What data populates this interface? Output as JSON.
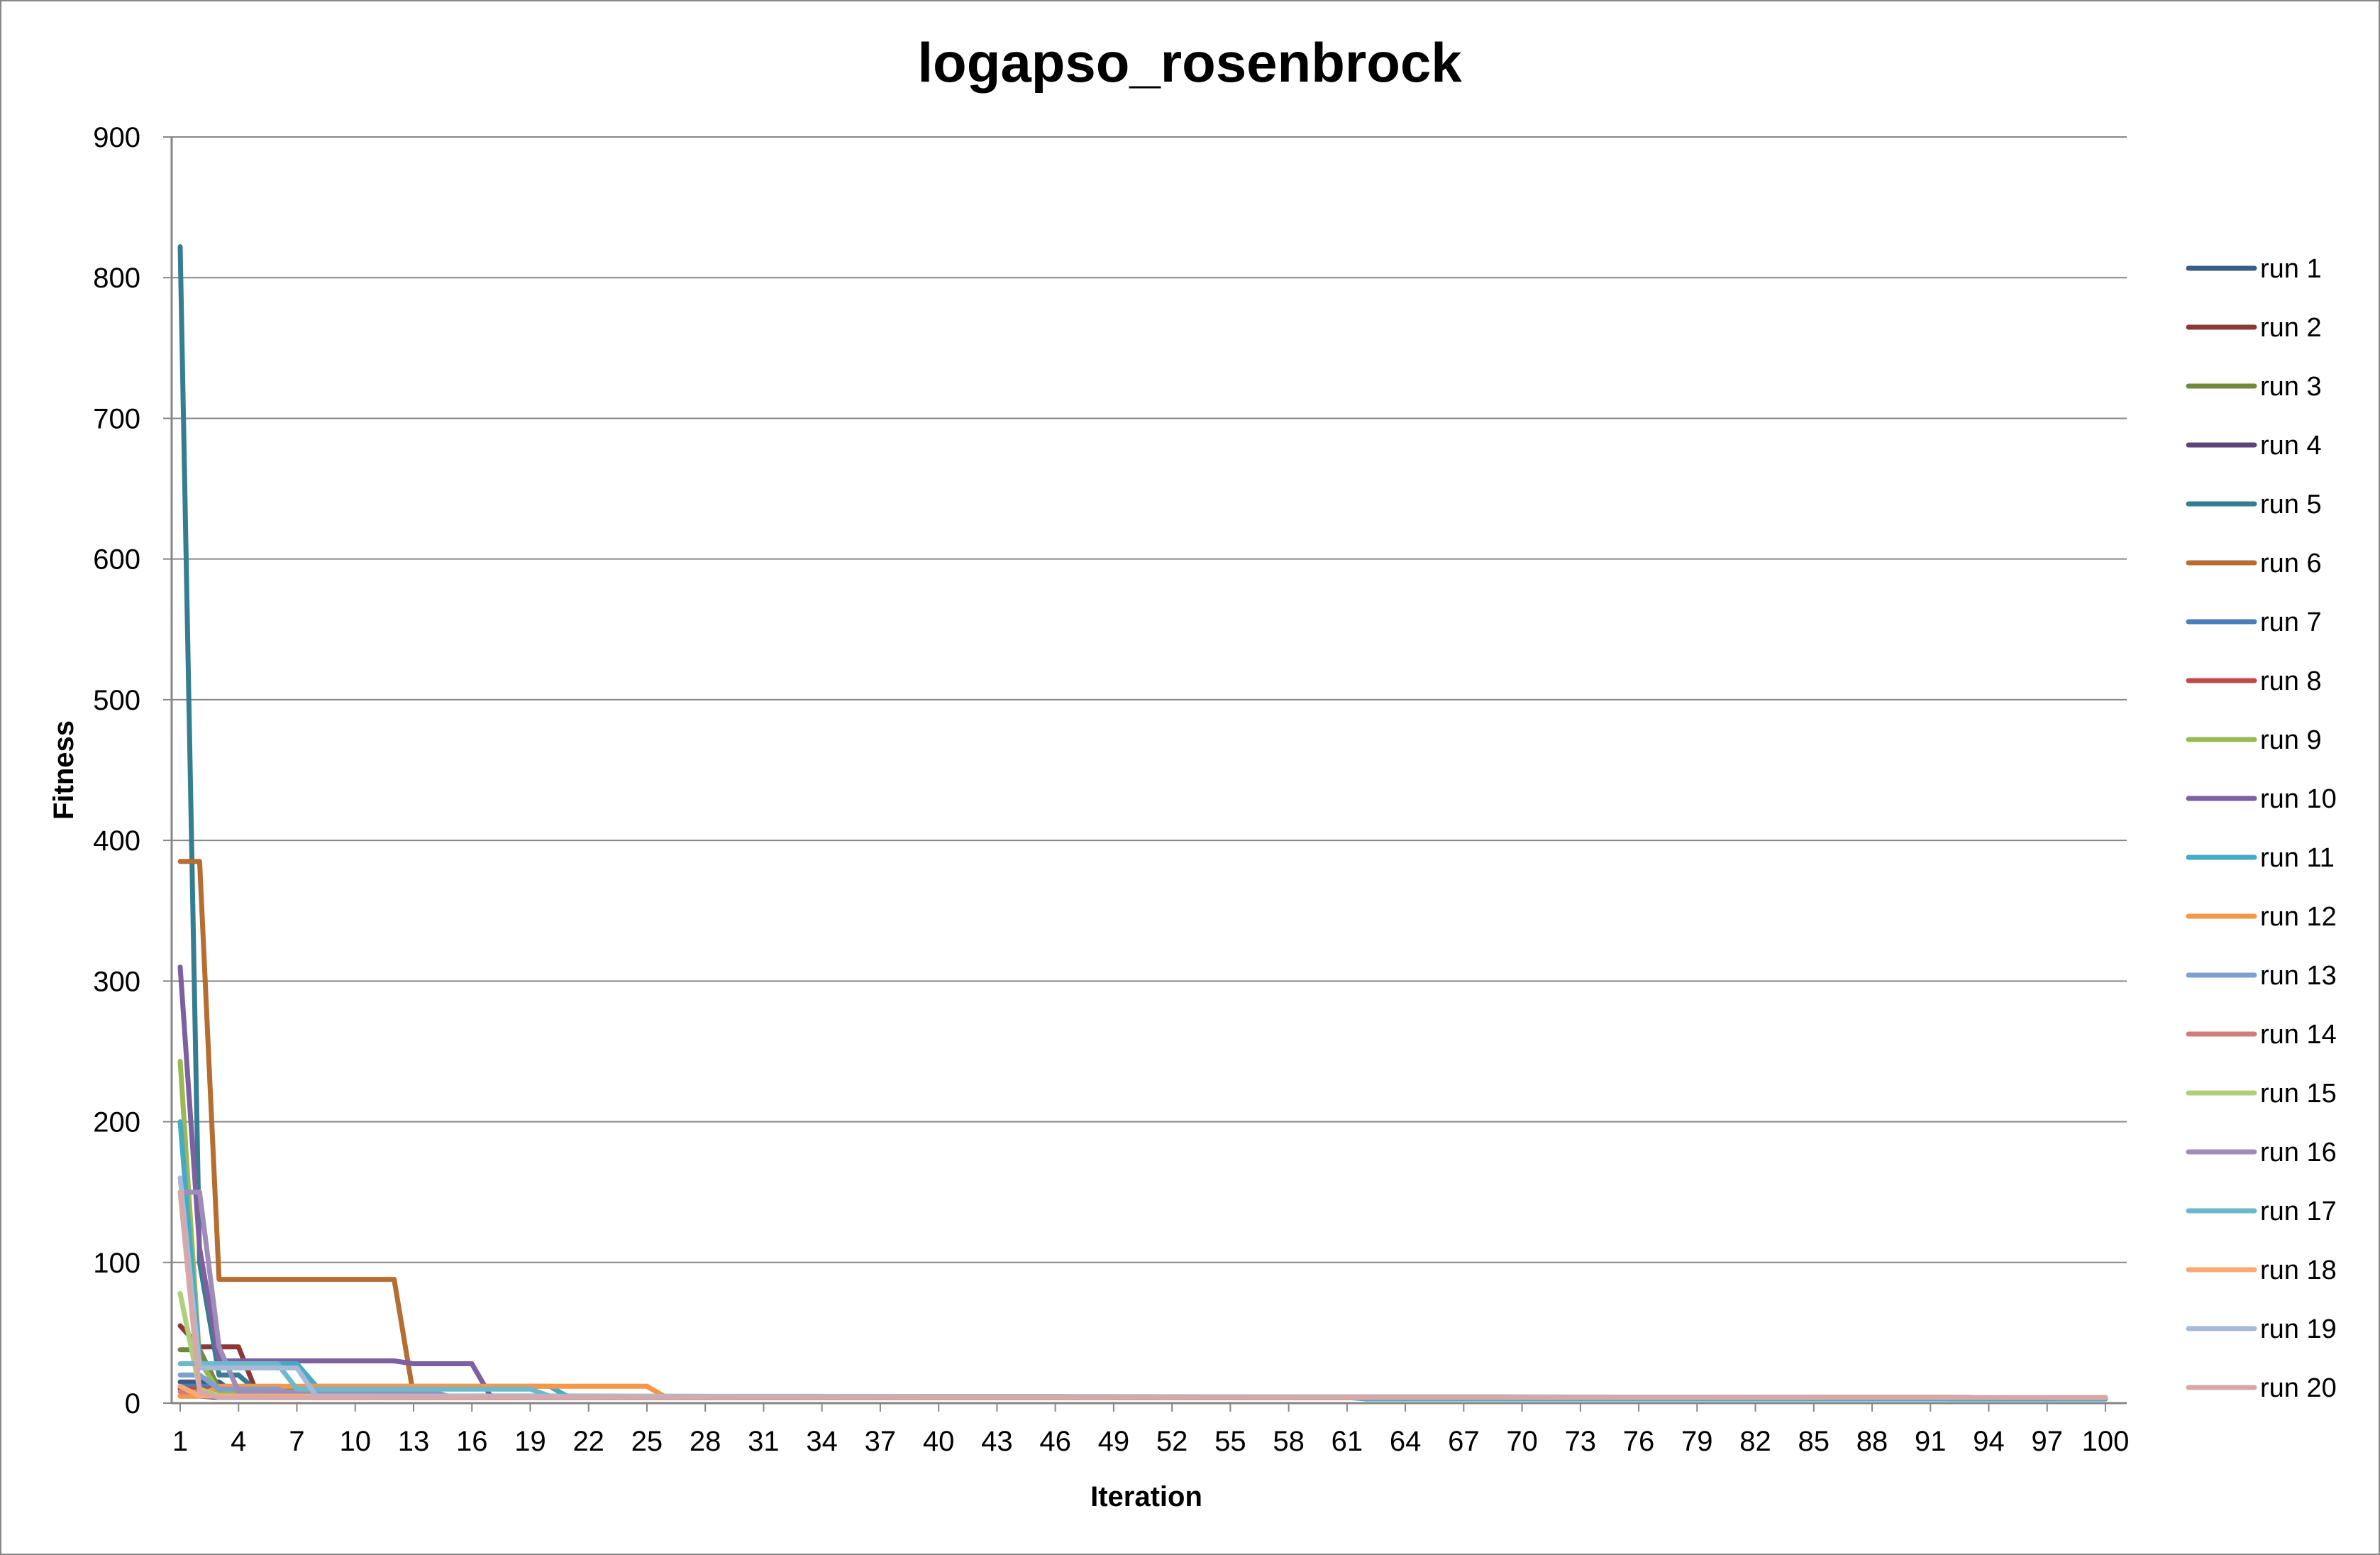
{
  "chart_data": {
    "type": "line",
    "title": "logapso_rosenbrock",
    "xlabel": "Iteration",
    "ylabel": "Fitness",
    "ylim": [
      0,
      900
    ],
    "yticks": [
      "0",
      "100",
      "200",
      "300",
      "400",
      "500",
      "600",
      "700",
      "800",
      "900"
    ],
    "xlim": [
      1,
      100
    ],
    "xticks": [
      "1",
      "4",
      "7",
      "10",
      "13",
      "16",
      "19",
      "22",
      "25",
      "28",
      "31",
      "34",
      "37",
      "40",
      "43",
      "46",
      "49",
      "52",
      "55",
      "58",
      "61",
      "64",
      "67",
      "70",
      "73",
      "76",
      "79",
      "82",
      "85",
      "88",
      "91",
      "94",
      "97",
      "100"
    ],
    "grid": true,
    "legend_position": "right",
    "series": [
      {
        "name": "run 1",
        "color": "#385D8A",
        "points": [
          [
            1,
            15
          ],
          [
            2,
            15
          ],
          [
            3,
            15
          ],
          [
            4,
            5
          ],
          [
            100,
            4
          ]
        ]
      },
      {
        "name": "run 2",
        "color": "#8C3836",
        "points": [
          [
            1,
            55
          ],
          [
            2,
            40
          ],
          [
            4,
            40
          ],
          [
            5,
            5
          ],
          [
            100,
            4
          ]
        ]
      },
      {
        "name": "run 3",
        "color": "#71893F",
        "points": [
          [
            1,
            38
          ],
          [
            2,
            38
          ],
          [
            3,
            10
          ],
          [
            7,
            10
          ],
          [
            8,
            4
          ],
          [
            100,
            4
          ]
        ]
      },
      {
        "name": "run 4",
        "color": "#5C4776",
        "points": [
          [
            1,
            5
          ],
          [
            2,
            5
          ],
          [
            3,
            4
          ],
          [
            100,
            4
          ]
        ]
      },
      {
        "name": "run 5",
        "color": "#357D91",
        "points": [
          [
            1,
            822
          ],
          [
            2,
            100
          ],
          [
            3,
            20
          ],
          [
            4,
            20
          ],
          [
            5,
            8
          ],
          [
            10,
            8
          ],
          [
            11,
            4
          ],
          [
            100,
            4
          ]
        ]
      },
      {
        "name": "run 6",
        "color": "#B66D31",
        "points": [
          [
            1,
            385
          ],
          [
            2,
            385
          ],
          [
            3,
            88
          ],
          [
            12,
            88
          ],
          [
            13,
            5
          ],
          [
            100,
            4
          ]
        ]
      },
      {
        "name": "run 7",
        "color": "#4A7EBB",
        "points": [
          [
            1,
            12
          ],
          [
            2,
            12
          ],
          [
            3,
            12
          ],
          [
            4,
            10
          ],
          [
            5,
            5
          ],
          [
            100,
            4
          ]
        ]
      },
      {
        "name": "run 8",
        "color": "#BE4B48",
        "points": [
          [
            1,
            10
          ],
          [
            2,
            10
          ],
          [
            3,
            10
          ],
          [
            4,
            6
          ],
          [
            5,
            4
          ],
          [
            100,
            4
          ]
        ]
      },
      {
        "name": "run 9",
        "color": "#98B954",
        "points": [
          [
            1,
            243
          ],
          [
            2,
            30
          ],
          [
            3,
            8
          ],
          [
            7,
            8
          ],
          [
            8,
            4
          ],
          [
            100,
            4
          ]
        ]
      },
      {
        "name": "run 10",
        "color": "#7D60A0",
        "points": [
          [
            1,
            310
          ],
          [
            2,
            110
          ],
          [
            3,
            30
          ],
          [
            12,
            30
          ],
          [
            13,
            28
          ],
          [
            16,
            28
          ],
          [
            17,
            4
          ],
          [
            91,
            4
          ],
          [
            92,
            3
          ],
          [
            100,
            3
          ]
        ]
      },
      {
        "name": "run 11",
        "color": "#46AAC5",
        "points": [
          [
            1,
            200
          ],
          [
            2,
            28
          ],
          [
            7,
            28
          ],
          [
            8,
            12
          ],
          [
            20,
            12
          ],
          [
            21,
            4
          ],
          [
            61,
            4
          ],
          [
            62,
            3
          ],
          [
            100,
            3
          ]
        ]
      },
      {
        "name": "run 12",
        "color": "#F79646",
        "points": [
          [
            1,
            5
          ],
          [
            2,
            5
          ],
          [
            3,
            12
          ],
          [
            13,
            12
          ],
          [
            25,
            12
          ],
          [
            26,
            4
          ],
          [
            100,
            4
          ]
        ]
      },
      {
        "name": "run 13",
        "color": "#7F9FCF",
        "points": [
          [
            1,
            20
          ],
          [
            2,
            20
          ],
          [
            3,
            10
          ],
          [
            6,
            10
          ],
          [
            7,
            5
          ],
          [
            100,
            4
          ]
        ]
      },
      {
        "name": "run 14",
        "color": "#D07D7B",
        "points": [
          [
            1,
            8
          ],
          [
            2,
            8
          ],
          [
            3,
            5
          ],
          [
            100,
            4
          ]
        ]
      },
      {
        "name": "run 15",
        "color": "#AFCF7B",
        "points": [
          [
            1,
            78
          ],
          [
            2,
            10
          ],
          [
            3,
            5
          ],
          [
            100,
            4
          ]
        ]
      },
      {
        "name": "run 16",
        "color": "#9E8CB9",
        "points": [
          [
            1,
            150
          ],
          [
            2,
            150
          ],
          [
            3,
            40
          ],
          [
            4,
            8
          ],
          [
            14,
            8
          ],
          [
            15,
            4
          ],
          [
            100,
            4
          ]
        ]
      },
      {
        "name": "run 17",
        "color": "#6CB9CD",
        "points": [
          [
            1,
            28
          ],
          [
            2,
            28
          ],
          [
            3,
            28
          ],
          [
            6,
            28
          ],
          [
            7,
            10
          ],
          [
            19,
            10
          ],
          [
            20,
            5
          ],
          [
            100,
            4
          ]
        ]
      },
      {
        "name": "run 18",
        "color": "#F9AA73",
        "points": [
          [
            1,
            12
          ],
          [
            2,
            5
          ],
          [
            100,
            4
          ]
        ]
      },
      {
        "name": "run 19",
        "color": "#A7B9D7",
        "points": [
          [
            1,
            160
          ],
          [
            2,
            25
          ],
          [
            7,
            25
          ],
          [
            8,
            5
          ],
          [
            100,
            4
          ]
        ]
      },
      {
        "name": "run 20",
        "color": "#D6A9A8",
        "points": [
          [
            1,
            150
          ],
          [
            2,
            8
          ],
          [
            3,
            4
          ],
          [
            100,
            4
          ]
        ]
      }
    ]
  }
}
